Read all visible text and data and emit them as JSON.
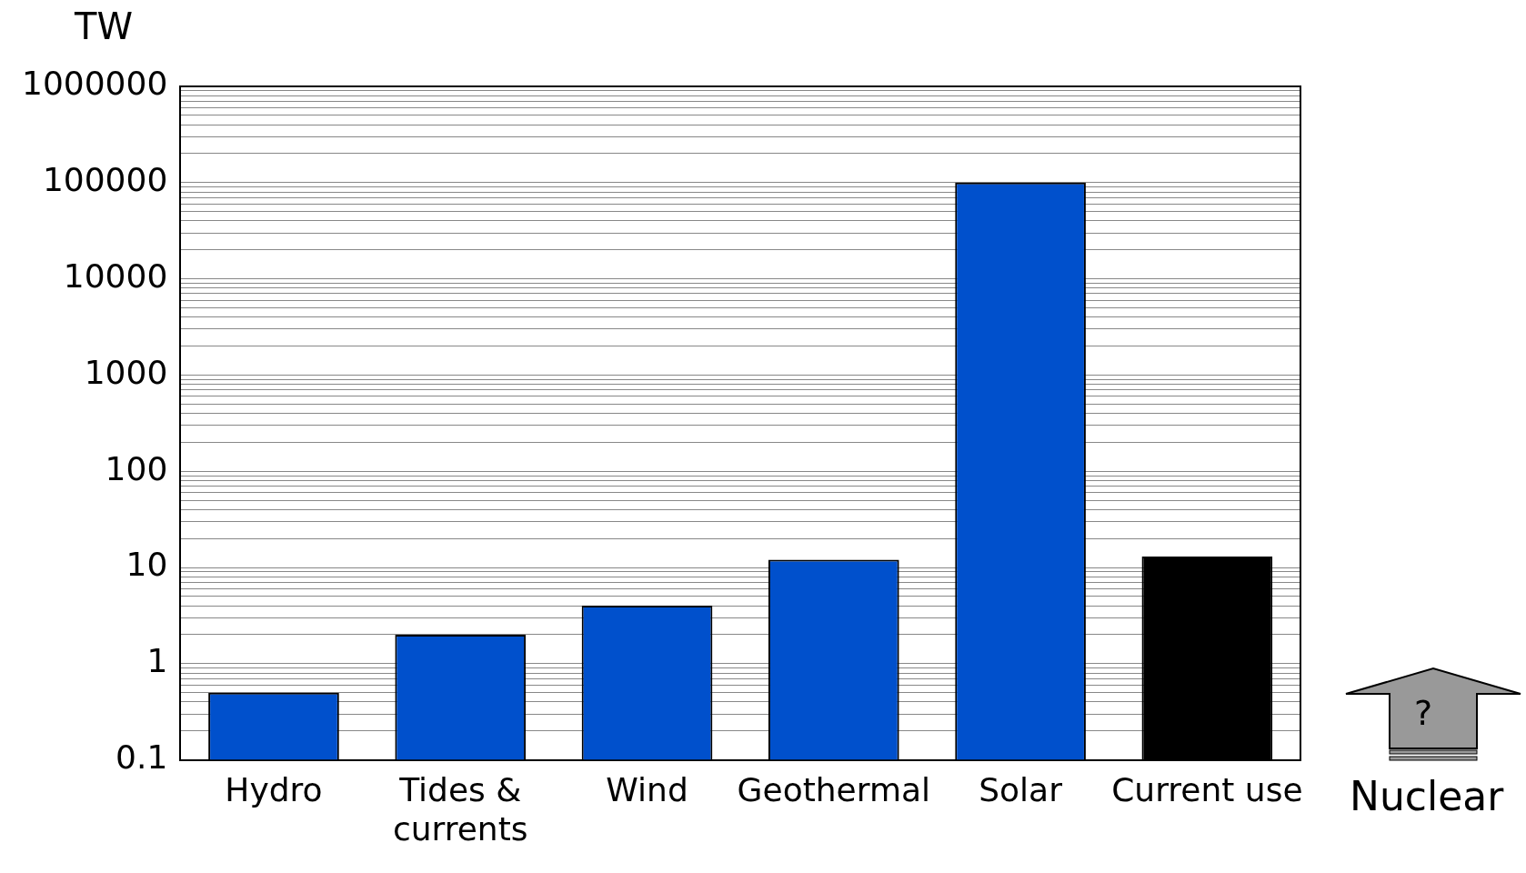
{
  "chart_data": {
    "type": "bar",
    "ylabel": "TW",
    "categories": [
      "Hydro",
      "Tides & currents",
      "Wind",
      "Geothermal",
      "Solar",
      "Current use"
    ],
    "values": [
      0.5,
      2,
      4,
      12,
      100000,
      13
    ],
    "colors": [
      "#0050cc",
      "#0050cc",
      "#0050cc",
      "#0050cc",
      "#0050cc",
      "#000000"
    ],
    "log": true,
    "ylim": [
      0.1,
      1000000
    ],
    "yticks": [
      0.1,
      {
        "value": 0.2,
        "label": null
      },
      {
        "value": 0.3,
        "label": null
      },
      {
        "value": 0.4,
        "label": null
      },
      {
        "value": 0.5,
        "label": null
      },
      {
        "value": 0.6,
        "label": null
      },
      {
        "value": 0.7,
        "label": null
      },
      {
        "value": 0.8,
        "label": null
      },
      {
        "value": 0.9,
        "label": null
      },
      1,
      {
        "value": 2,
        "label": null
      },
      {
        "value": 3,
        "label": null
      },
      {
        "value": 4,
        "label": null
      },
      {
        "value": 5,
        "label": null
      },
      {
        "value": 6,
        "label": null
      },
      {
        "value": 7,
        "label": null
      },
      {
        "value": 8,
        "label": null
      },
      {
        "value": 9,
        "label": null
      },
      10,
      {
        "value": 20,
        "label": null
      },
      {
        "value": 30,
        "label": null
      },
      {
        "value": 40,
        "label": null
      },
      {
        "value": 50,
        "label": null
      },
      {
        "value": 60,
        "label": null
      },
      {
        "value": 70,
        "label": null
      },
      {
        "value": 80,
        "label": null
      },
      {
        "value": 90,
        "label": null
      },
      100,
      {
        "value": 200,
        "label": null
      },
      {
        "value": 300,
        "label": null
      },
      {
        "value": 400,
        "label": null
      },
      {
        "value": 500,
        "label": null
      },
      {
        "value": 600,
        "label": null
      },
      {
        "value": 700,
        "label": null
      },
      {
        "value": 800,
        "label": null
      },
      {
        "value": 900,
        "label": null
      },
      1000,
      {
        "value": 2000,
        "label": null
      },
      {
        "value": 3000,
        "label": null
      },
      {
        "value": 4000,
        "label": null
      },
      {
        "value": 5000,
        "label": null
      },
      {
        "value": 6000,
        "label": null
      },
      {
        "value": 7000,
        "label": null
      },
      {
        "value": 8000,
        "label": null
      },
      {
        "value": 9000,
        "label": null
      },
      10000,
      {
        "value": 20000,
        "label": null
      },
      {
        "value": 30000,
        "label": null
      },
      {
        "value": 40000,
        "label": null
      },
      {
        "value": 50000,
        "label": null
      },
      {
        "value": 60000,
        "label": null
      },
      {
        "value": 70000,
        "label": null
      },
      {
        "value": 80000,
        "label": null
      },
      {
        "value": 90000,
        "label": null
      },
      100000,
      {
        "value": 200000,
        "label": null
      },
      {
        "value": 300000,
        "label": null
      },
      {
        "value": 400000,
        "label": null
      },
      {
        "value": 500000,
        "label": null
      },
      {
        "value": 600000,
        "label": null
      },
      {
        "value": 700000,
        "label": null
      },
      {
        "value": 800000,
        "label": null
      },
      {
        "value": 900000,
        "label": null
      },
      1000000
    ],
    "grid": "y",
    "legend": false,
    "annotations": [
      "?",
      "Nuclear"
    ]
  }
}
